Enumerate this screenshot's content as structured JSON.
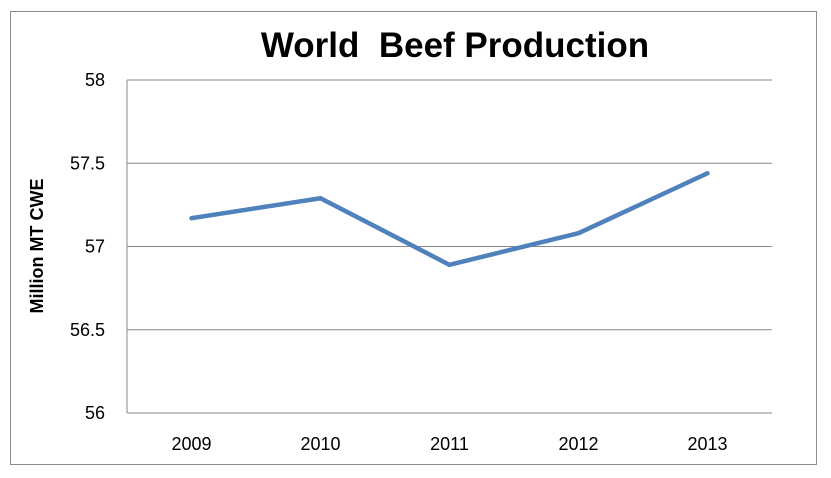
{
  "chart_data": {
    "type": "line",
    "title": "World  Beef Production",
    "xlabel": "",
    "ylabel": "Million MT CWE",
    "categories": [
      "2009",
      "2010",
      "2011",
      "2012",
      "2013"
    ],
    "series": [
      {
        "values": [
          57.17,
          57.29,
          56.89,
          57.08,
          57.44
        ],
        "color": "#4F81BD"
      }
    ],
    "ylim": [
      56,
      58
    ],
    "yticks": [
      56,
      56.5,
      57,
      57.5,
      58
    ],
    "ytick_labels": [
      "56",
      "56.5",
      "57",
      "57.5",
      "58"
    ],
    "grid": "horizontal",
    "legend": "none"
  }
}
